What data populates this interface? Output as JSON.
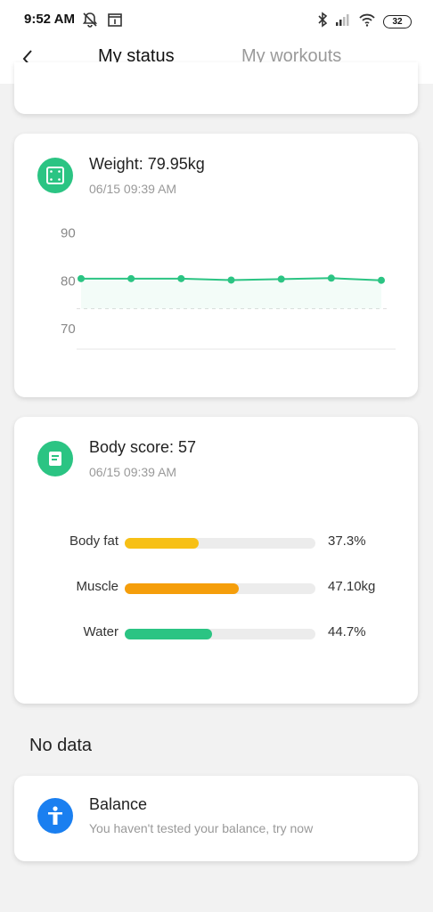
{
  "status_bar": {
    "time": "9:52 AM",
    "battery": "32",
    "icons": [
      "bell-off-icon",
      "calendar-icon",
      "bluetooth-icon",
      "signal-icon",
      "wifi-icon",
      "battery-icon"
    ]
  },
  "header": {
    "tabs": [
      {
        "label": "My status",
        "active": true
      },
      {
        "label": "My workouts",
        "active": false
      }
    ],
    "back_icon": "chevron-left-icon",
    "accent_color": "#f07a1a"
  },
  "weight_card": {
    "icon": "scale-icon",
    "icon_color": "#2bc483",
    "title": "Weight: 79.95kg",
    "timestamp": "06/15 09:39 AM"
  },
  "chart_data": {
    "type": "line",
    "title": "",
    "xlabel": "",
    "ylabel": "",
    "ylim": [
      65,
      92
    ],
    "y_ticks": [
      "90",
      "80",
      "70"
    ],
    "y_tick_values": [
      90,
      80,
      70
    ],
    "reference_line": 74,
    "x": [
      1,
      2,
      3,
      4,
      5,
      6,
      7
    ],
    "series": [
      {
        "values": [
          80.3,
          80.3,
          80.3,
          80.0,
          80.2,
          80.4,
          79.95
        ],
        "color": "#2bc483"
      }
    ],
    "grid": false
  },
  "body_card": {
    "icon": "document-icon",
    "icon_color": "#2bc483",
    "title": "Body score: 57",
    "timestamp": "06/15 09:39 AM",
    "rows": [
      {
        "label": "Body fat",
        "value": "37.3%",
        "fraction": 0.39,
        "color": "#f7c016"
      },
      {
        "label": "Muscle",
        "value": "47.10kg",
        "fraction": 0.6,
        "color": "#f59e0b"
      },
      {
        "label": "Water",
        "value": "44.7%",
        "fraction": 0.46,
        "color": "#2bc483"
      }
    ]
  },
  "no_data": {
    "heading": "No data"
  },
  "balance_card": {
    "icon": "person-balance-icon",
    "icon_color": "#1a7ff0",
    "title": "Balance",
    "subtitle": "You haven't tested your balance, try now"
  }
}
